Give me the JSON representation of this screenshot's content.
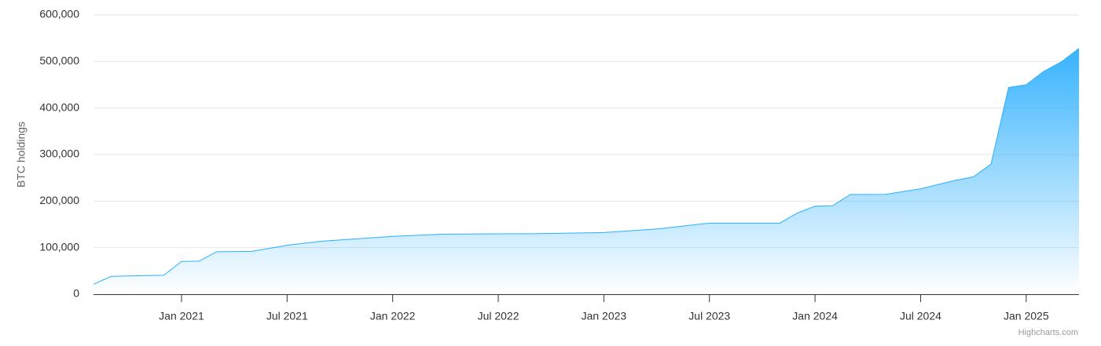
{
  "chart_data": {
    "type": "area",
    "y_axis_label": "BTC holdings",
    "credits": "Highcharts.com",
    "color": "#2caffe",
    "grid": true,
    "x": [
      "2020-08",
      "2020-09",
      "2020-12",
      "2021-01",
      "2021-02",
      "2021-03",
      "2021-05",
      "2021-07",
      "2021-09",
      "2022-01",
      "2022-04",
      "2022-09",
      "2023-01",
      "2023-04",
      "2023-07",
      "2023-11",
      "2023-12",
      "2024-01",
      "2024-02",
      "2024-03",
      "2024-05",
      "2024-07",
      "2024-09",
      "2024-10",
      "2024-11",
      "2024-12",
      "2025-01",
      "2025-02",
      "2025-03",
      "2025-04"
    ],
    "values": [
      21454,
      38250,
      40824,
      70470,
      71079,
      91326,
      92079,
      105085,
      114042,
      124391,
      129218,
      130000,
      132500,
      140000,
      152800,
      152800,
      174530,
      189150,
      190000,
      214246,
      214400,
      226500,
      244800,
      252220,
      279420,
      444262,
      450000,
      478740,
      499096,
      528185
    ],
    "xlim": [
      "2020-08",
      "2025-04"
    ],
    "xticks": [
      {
        "value": "2021-01",
        "label": "Jan 2021"
      },
      {
        "value": "2021-07",
        "label": "Jul 2021"
      },
      {
        "value": "2022-01",
        "label": "Jan 2022"
      },
      {
        "value": "2022-07",
        "label": "Jul 2022"
      },
      {
        "value": "2023-01",
        "label": "Jan 2023"
      },
      {
        "value": "2023-07",
        "label": "Jul 2023"
      },
      {
        "value": "2024-01",
        "label": "Jan 2024"
      },
      {
        "value": "2024-07",
        "label": "Jul 2024"
      },
      {
        "value": "2025-01",
        "label": "Jan 2025"
      }
    ],
    "ylim": [
      0,
      600000
    ],
    "yticks": [
      0,
      {
        "value": 100000,
        "label": "100,000"
      },
      {
        "value": 200000,
        "label": "200,000"
      },
      {
        "value": 300000,
        "label": "300,000"
      },
      {
        "value": 400000,
        "label": "400,000"
      },
      {
        "value": 500000,
        "label": "500,000"
      },
      {
        "value": 600000,
        "label": "600,000"
      }
    ]
  }
}
